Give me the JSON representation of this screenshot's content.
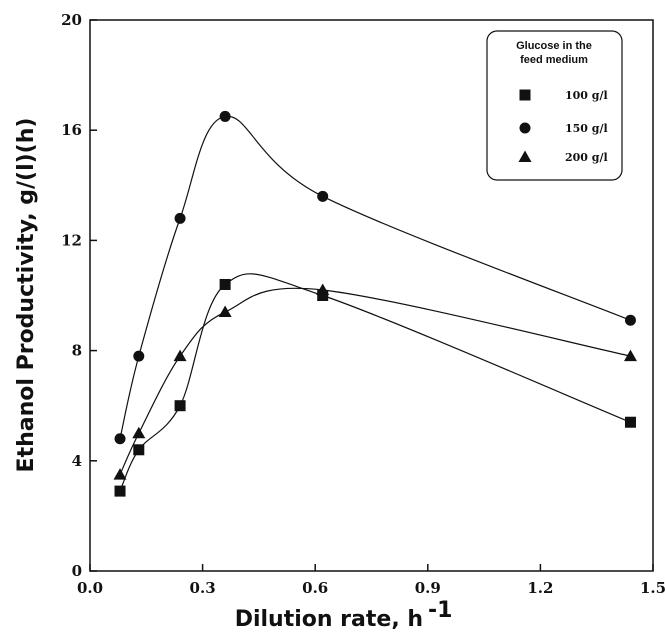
{
  "chart_data": {
    "type": "line",
    "xlabel": "Dilution rate, h",
    "xlabel_superscript": "-1",
    "ylabel": "Ethanol Productivity, g/(l)(h)",
    "xlim": [
      0.0,
      1.5
    ],
    "ylim": [
      0,
      20
    ],
    "x_ticks": [
      "0.0",
      "0.3",
      "0.6",
      "0.9",
      "1.2",
      "1.5"
    ],
    "y_ticks": [
      "0",
      "4",
      "8",
      "12",
      "16",
      "20"
    ],
    "grid": false,
    "legend": {
      "title_lines": [
        "Glucose in the",
        "feed medium"
      ],
      "placement": "top-right"
    },
    "series": [
      {
        "name": "100 g/l",
        "marker": "square",
        "x": [
          0.08,
          0.13,
          0.24,
          0.36,
          0.62,
          1.44
        ],
        "y": [
          2.9,
          4.4,
          6.0,
          10.4,
          10.0,
          5.4
        ]
      },
      {
        "name": "150 g/l",
        "marker": "circle",
        "x": [
          0.08,
          0.13,
          0.24,
          0.36,
          0.62,
          1.44
        ],
        "y": [
          4.8,
          7.8,
          12.8,
          16.5,
          13.6,
          9.1
        ]
      },
      {
        "name": "200 g/l",
        "marker": "triangle",
        "x": [
          0.08,
          0.13,
          0.24,
          0.36,
          0.62,
          1.44
        ],
        "y": [
          3.5,
          5.0,
          7.8,
          9.4,
          10.2,
          7.8
        ]
      }
    ]
  }
}
